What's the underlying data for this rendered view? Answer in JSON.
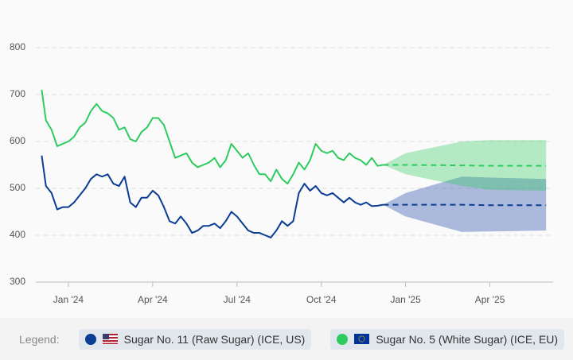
{
  "legend_label": "Legend:",
  "chart_data": {
    "type": "line",
    "x": [
      -0.95,
      -0.8,
      -0.6,
      -0.4,
      -0.2,
      0,
      0.2,
      0.4,
      0.6,
      0.8,
      1,
      1.2,
      1.4,
      1.6,
      1.8,
      2,
      2.2,
      2.4,
      2.6,
      2.8,
      3,
      3.2,
      3.4,
      3.6,
      3.8,
      4,
      4.2,
      4.4,
      4.6,
      4.8,
      5,
      5.2,
      5.4,
      5.6,
      5.8,
      6,
      6.2,
      6.4,
      6.6,
      6.8,
      7,
      7.2,
      7.4,
      7.6,
      7.8,
      8,
      8.2,
      8.4,
      8.6,
      8.8,
      9,
      9.2,
      9.4,
      9.6,
      9.8,
      10,
      10.2,
      10.4,
      10.6,
      10.8,
      11,
      11.2
    ],
    "forecast_x": [
      11.2,
      12,
      14,
      15,
      17
    ],
    "series": [
      {
        "name": "Sugar No. 11 (Raw Sugar) (ICE, US)",
        "color": "#0b3d94",
        "band_color": "rgba(40,80,170,0.38)",
        "values": [
          570,
          505,
          490,
          455,
          460,
          460,
          470,
          485,
          500,
          520,
          530,
          525,
          530,
          510,
          505,
          525,
          470,
          460,
          480,
          480,
          495,
          485,
          460,
          430,
          425,
          440,
          425,
          405,
          410,
          420,
          420,
          425,
          415,
          430,
          450,
          440,
          425,
          410,
          405,
          405,
          400,
          395,
          410,
          430,
          420,
          430,
          490,
          510,
          495,
          505,
          490,
          485,
          490,
          480,
          470,
          480,
          470,
          465,
          470,
          462,
          463,
          465
        ],
        "forecast": [
          465,
          465,
          465,
          464,
          464
        ],
        "forecast_lower": [
          465,
          440,
          407,
          408,
          410
        ],
        "forecast_upper": [
          465,
          490,
          525,
          523,
          520
        ]
      },
      {
        "name": "Sugar No. 5 (White Sugar) (ICE, EU)",
        "color": "#2ecc5f",
        "band_color": "rgba(46,204,95,0.35)",
        "values": [
          710,
          645,
          625,
          590,
          595,
          600,
          610,
          630,
          640,
          665,
          680,
          665,
          660,
          650,
          625,
          630,
          605,
          600,
          620,
          630,
          650,
          650,
          635,
          600,
          565,
          570,
          575,
          555,
          545,
          550,
          555,
          565,
          545,
          560,
          595,
          580,
          565,
          575,
          550,
          530,
          530,
          515,
          540,
          520,
          510,
          530,
          555,
          540,
          560,
          595,
          580,
          575,
          580,
          565,
          560,
          575,
          565,
          560,
          550,
          565,
          548,
          550
        ],
        "forecast": [
          550,
          550,
          549,
          548,
          548
        ],
        "forecast_lower": [
          550,
          530,
          505,
          497,
          495
        ],
        "forecast_upper": [
          550,
          575,
          600,
          603,
          603
        ]
      }
    ],
    "xlim": [
      -1.16,
      17.25
    ],
    "xticks": [
      {
        "value": 0,
        "label": "Jan '24"
      },
      {
        "value": 3,
        "label": "Apr '24"
      },
      {
        "value": 6,
        "label": "Jul '24"
      },
      {
        "value": 9,
        "label": "Oct '24"
      },
      {
        "value": 12,
        "label": "Jan '25"
      },
      {
        "value": 15,
        "label": "Apr '25"
      }
    ],
    "ylim": [
      300,
      800
    ],
    "yticks": [
      300,
      400,
      500,
      600,
      700,
      800
    ],
    "grid": true
  }
}
